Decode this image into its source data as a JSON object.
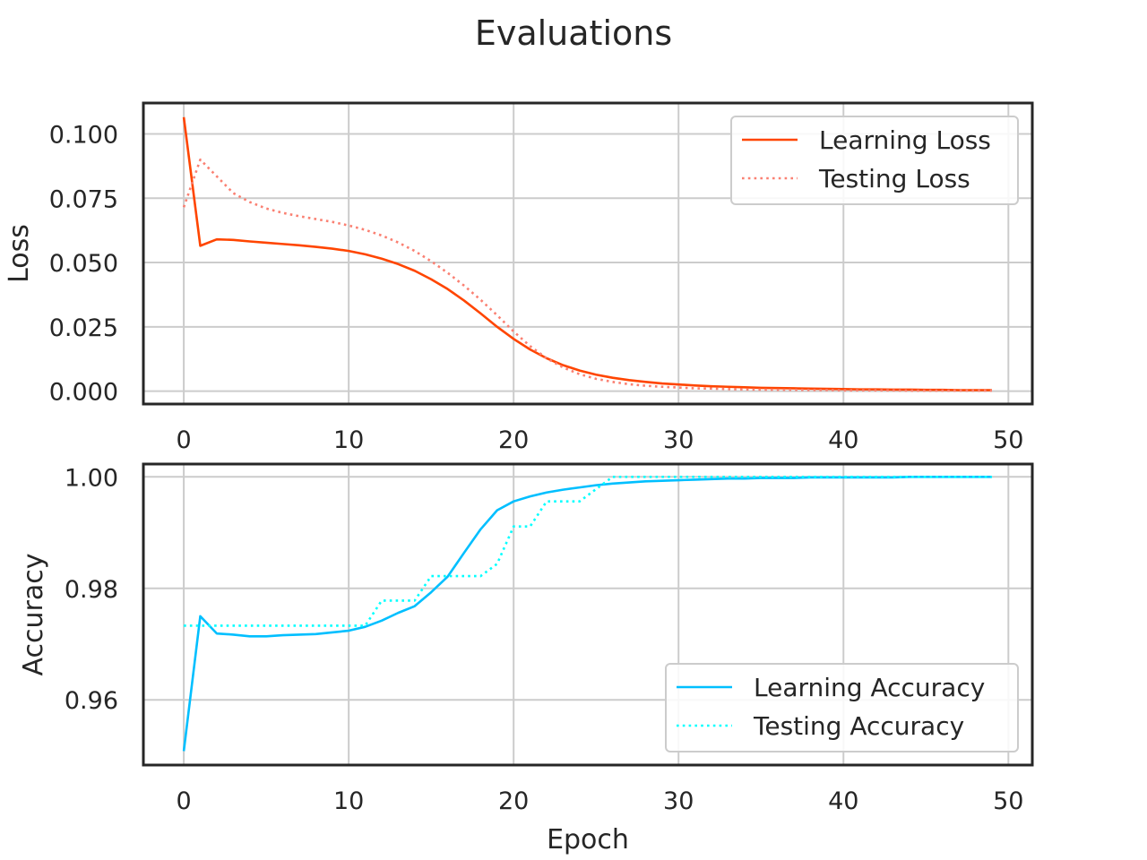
{
  "figure": {
    "title": "Evaluations"
  },
  "chart_data": [
    {
      "type": "line",
      "title": "",
      "xlabel": "",
      "ylabel": "Loss",
      "xlim": [
        -2.45,
        51.45
      ],
      "ylim": [
        -0.005,
        0.112
      ],
      "xticks": [
        0,
        10,
        20,
        30,
        40,
        50
      ],
      "yticks": [
        0.0,
        0.025,
        0.05,
        0.075,
        0.1
      ],
      "ytick_labels": [
        "0.000",
        "0.025",
        "0.050",
        "0.075",
        "0.100"
      ],
      "grid": true,
      "legend_position": "top-right",
      "series": [
        {
          "name": "Learning Loss",
          "style": "solid",
          "color": "#FF4500",
          "values": [
            0.1065,
            0.0565,
            0.059,
            0.0588,
            0.0582,
            0.0577,
            0.0572,
            0.0567,
            0.0561,
            0.0554,
            0.0545,
            0.0532,
            0.0515,
            0.0494,
            0.0468,
            0.0435,
            0.0397,
            0.0352,
            0.0302,
            0.025,
            0.0203,
            0.0162,
            0.0128,
            0.0101,
            0.008,
            0.0064,
            0.0052,
            0.0043,
            0.0036,
            0.003,
            0.0026,
            0.0022,
            0.0019,
            0.0017,
            0.0015,
            0.0013,
            0.0012,
            0.0011,
            0.001,
            0.0009,
            0.0008,
            0.0007,
            0.0007,
            0.0006,
            0.0006,
            0.0005,
            0.0005,
            0.0004,
            0.0004,
            0.0004
          ]
        },
        {
          "name": "Testing Loss",
          "style": "dotted",
          "color": "#FA8072",
          "values": [
            0.0715,
            0.09,
            0.0835,
            0.077,
            0.0735,
            0.071,
            0.0693,
            0.068,
            0.0669,
            0.0658,
            0.0644,
            0.0627,
            0.0605,
            0.0578,
            0.0545,
            0.0505,
            0.046,
            0.041,
            0.0355,
            0.0295,
            0.0232,
            0.0175,
            0.0128,
            0.0092,
            0.0066,
            0.0048,
            0.0036,
            0.0027,
            0.0021,
            0.0017,
            0.0014,
            0.0011,
            0.001,
            0.0008,
            0.0007,
            0.0006,
            0.0005,
            0.0005,
            0.0004,
            0.0004,
            0.0003,
            0.0003,
            0.0003,
            0.0003,
            0.0002,
            0.0002,
            0.0002,
            0.0002,
            0.0002,
            0.0002
          ]
        }
      ]
    },
    {
      "type": "line",
      "title": "",
      "xlabel": "Epoch",
      "ylabel": "Accuracy",
      "xlim": [
        -2.45,
        51.45
      ],
      "ylim": [
        0.9483,
        1.0023
      ],
      "xticks": [
        0,
        10,
        20,
        30,
        40,
        50
      ],
      "yticks": [
        0.96,
        0.98,
        1.0
      ],
      "ytick_labels": [
        "0.96",
        "0.98",
        "1.00"
      ],
      "grid": true,
      "legend_position": "bottom-right",
      "series": [
        {
          "name": "Learning Accuracy",
          "style": "solid",
          "color": "#00BFFF",
          "values": [
            0.9508,
            0.975,
            0.9719,
            0.9717,
            0.9714,
            0.9714,
            0.9716,
            0.9717,
            0.9718,
            0.9721,
            0.9724,
            0.9731,
            0.9742,
            0.9756,
            0.9768,
            0.9793,
            0.9821,
            0.9864,
            0.9906,
            0.994,
            0.9956,
            0.9965,
            0.9972,
            0.9977,
            0.9981,
            0.9985,
            0.9988,
            0.999,
            0.9992,
            0.9993,
            0.9994,
            0.9995,
            0.9996,
            0.9997,
            0.9997,
            0.9998,
            0.9998,
            0.9998,
            0.9999,
            0.9999,
            0.9999,
            0.9999,
            0.9999,
            0.9999,
            1.0,
            1.0,
            1.0,
            1.0,
            1.0,
            1.0
          ]
        },
        {
          "name": "Testing Accuracy",
          "style": "dotted",
          "color": "#00FFFF",
          "values": [
            0.9733,
            0.9733,
            0.9733,
            0.9733,
            0.9733,
            0.9733,
            0.9733,
            0.9733,
            0.9733,
            0.9733,
            0.9733,
            0.9733,
            0.9778,
            0.9778,
            0.9778,
            0.9822,
            0.9822,
            0.9822,
            0.9822,
            0.9844,
            0.9911,
            0.9911,
            0.9956,
            0.9956,
            0.9956,
            0.9978,
            1.0,
            1.0,
            1.0,
            1.0,
            1.0,
            1.0,
            1.0,
            1.0,
            1.0,
            1.0,
            1.0,
            1.0,
            1.0,
            1.0,
            1.0,
            1.0,
            1.0,
            1.0,
            1.0,
            1.0,
            1.0,
            1.0,
            1.0,
            1.0
          ]
        }
      ]
    }
  ]
}
